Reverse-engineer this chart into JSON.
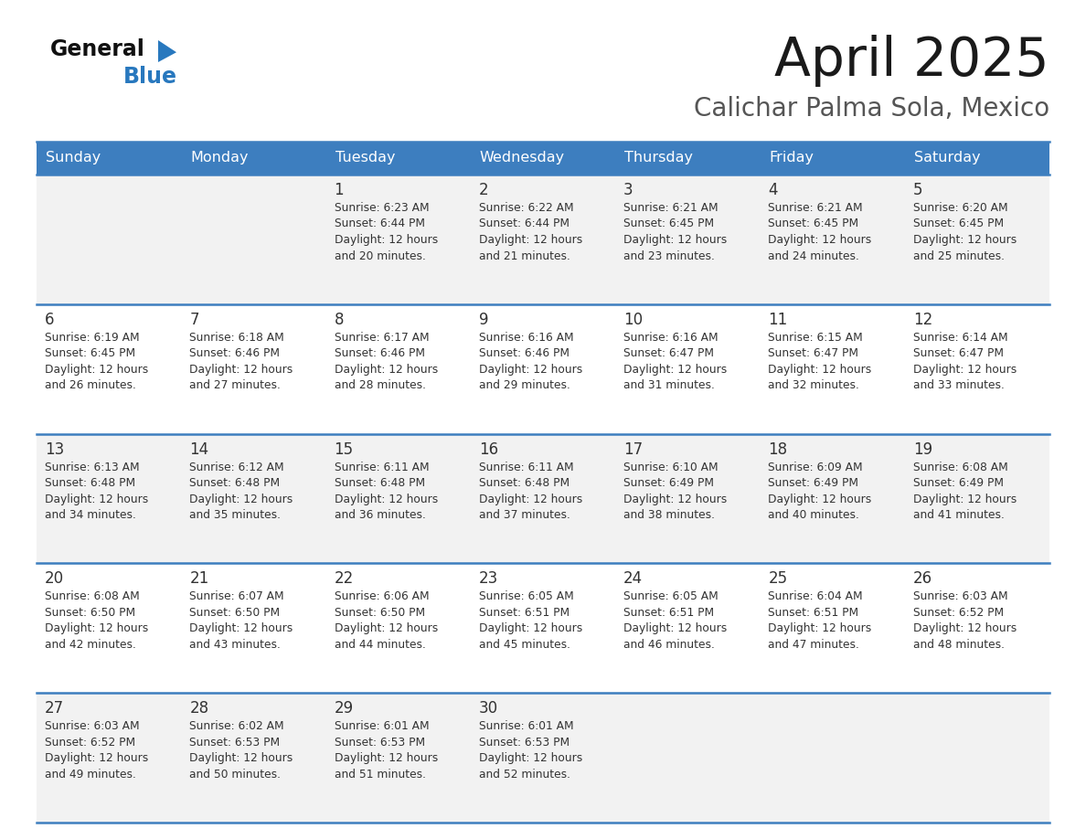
{
  "title": "April 2025",
  "subtitle": "Calichar Palma Sola, Mexico",
  "header_bg_color": "#3d7ebf",
  "header_text_color": "#ffffff",
  "day_names": [
    "Sunday",
    "Monday",
    "Tuesday",
    "Wednesday",
    "Thursday",
    "Friday",
    "Saturday"
  ],
  "row_colors": [
    "#f2f2f2",
    "#ffffff"
  ],
  "border_color": "#3d7ebf",
  "text_color": "#333333",
  "num_color": "#333333",
  "logo_black": "#111111",
  "logo_blue": "#2878be",
  "calendar_data": [
    [
      {
        "day": null,
        "sunrise": null,
        "sunset": null,
        "daylight_min": null
      },
      {
        "day": null,
        "sunrise": null,
        "sunset": null,
        "daylight_min": null
      },
      {
        "day": 1,
        "sunrise": "6:23 AM",
        "sunset": "6:44 PM",
        "daylight_min": 20
      },
      {
        "day": 2,
        "sunrise": "6:22 AM",
        "sunset": "6:44 PM",
        "daylight_min": 21
      },
      {
        "day": 3,
        "sunrise": "6:21 AM",
        "sunset": "6:45 PM",
        "daylight_min": 23
      },
      {
        "day": 4,
        "sunrise": "6:21 AM",
        "sunset": "6:45 PM",
        "daylight_min": 24
      },
      {
        "day": 5,
        "sunrise": "6:20 AM",
        "sunset": "6:45 PM",
        "daylight_min": 25
      }
    ],
    [
      {
        "day": 6,
        "sunrise": "6:19 AM",
        "sunset": "6:45 PM",
        "daylight_min": 26
      },
      {
        "day": 7,
        "sunrise": "6:18 AM",
        "sunset": "6:46 PM",
        "daylight_min": 27
      },
      {
        "day": 8,
        "sunrise": "6:17 AM",
        "sunset": "6:46 PM",
        "daylight_min": 28
      },
      {
        "day": 9,
        "sunrise": "6:16 AM",
        "sunset": "6:46 PM",
        "daylight_min": 29
      },
      {
        "day": 10,
        "sunrise": "6:16 AM",
        "sunset": "6:47 PM",
        "daylight_min": 31
      },
      {
        "day": 11,
        "sunrise": "6:15 AM",
        "sunset": "6:47 PM",
        "daylight_min": 32
      },
      {
        "day": 12,
        "sunrise": "6:14 AM",
        "sunset": "6:47 PM",
        "daylight_min": 33
      }
    ],
    [
      {
        "day": 13,
        "sunrise": "6:13 AM",
        "sunset": "6:48 PM",
        "daylight_min": 34
      },
      {
        "day": 14,
        "sunrise": "6:12 AM",
        "sunset": "6:48 PM",
        "daylight_min": 35
      },
      {
        "day": 15,
        "sunrise": "6:11 AM",
        "sunset": "6:48 PM",
        "daylight_min": 36
      },
      {
        "day": 16,
        "sunrise": "6:11 AM",
        "sunset": "6:48 PM",
        "daylight_min": 37
      },
      {
        "day": 17,
        "sunrise": "6:10 AM",
        "sunset": "6:49 PM",
        "daylight_min": 38
      },
      {
        "day": 18,
        "sunrise": "6:09 AM",
        "sunset": "6:49 PM",
        "daylight_min": 40
      },
      {
        "day": 19,
        "sunrise": "6:08 AM",
        "sunset": "6:49 PM",
        "daylight_min": 41
      }
    ],
    [
      {
        "day": 20,
        "sunrise": "6:08 AM",
        "sunset": "6:50 PM",
        "daylight_min": 42
      },
      {
        "day": 21,
        "sunrise": "6:07 AM",
        "sunset": "6:50 PM",
        "daylight_min": 43
      },
      {
        "day": 22,
        "sunrise": "6:06 AM",
        "sunset": "6:50 PM",
        "daylight_min": 44
      },
      {
        "day": 23,
        "sunrise": "6:05 AM",
        "sunset": "6:51 PM",
        "daylight_min": 45
      },
      {
        "day": 24,
        "sunrise": "6:05 AM",
        "sunset": "6:51 PM",
        "daylight_min": 46
      },
      {
        "day": 25,
        "sunrise": "6:04 AM",
        "sunset": "6:51 PM",
        "daylight_min": 47
      },
      {
        "day": 26,
        "sunrise": "6:03 AM",
        "sunset": "6:52 PM",
        "daylight_min": 48
      }
    ],
    [
      {
        "day": 27,
        "sunrise": "6:03 AM",
        "sunset": "6:52 PM",
        "daylight_min": 49
      },
      {
        "day": 28,
        "sunrise": "6:02 AM",
        "sunset": "6:53 PM",
        "daylight_min": 50
      },
      {
        "day": 29,
        "sunrise": "6:01 AM",
        "sunset": "6:53 PM",
        "daylight_min": 51
      },
      {
        "day": 30,
        "sunrise": "6:01 AM",
        "sunset": "6:53 PM",
        "daylight_min": 52
      },
      {
        "day": null,
        "sunrise": null,
        "sunset": null,
        "daylight_min": null
      },
      {
        "day": null,
        "sunrise": null,
        "sunset": null,
        "daylight_min": null
      },
      {
        "day": null,
        "sunrise": null,
        "sunset": null,
        "daylight_min": null
      }
    ]
  ]
}
